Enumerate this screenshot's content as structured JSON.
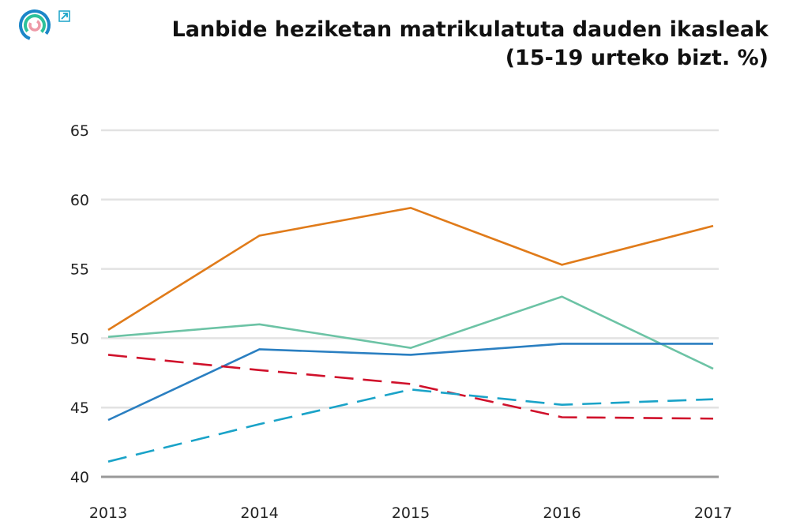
{
  "title_line1": "Lanbide heziketan matrikulatuta dauden ikasleak",
  "title_line2": "(15-19 urteko bizt. %)",
  "icons": {
    "logo": "circular-logo-icon",
    "external": "external-link-icon"
  },
  "chart_data": {
    "type": "line",
    "title": "Lanbide heziketan matrikulatuta dauden ikasleak (15-19 urteko bizt. %)",
    "categories": [
      "2013",
      "2014",
      "2015",
      "2016",
      "2017"
    ],
    "yticks": [
      "40",
      "45",
      "50",
      "55",
      "60",
      "65"
    ],
    "ylim": [
      40,
      65
    ],
    "grid": true,
    "legend": "none",
    "series": [
      {
        "color": "#e07b1a",
        "dash": false,
        "values": [
          50.6,
          57.4,
          59.4,
          55.3,
          58.1
        ]
      },
      {
        "color": "#6cc3a5",
        "dash": false,
        "values": [
          50.1,
          51.0,
          49.3,
          53.0,
          47.8
        ]
      },
      {
        "color": "#2a7fc1",
        "dash": false,
        "values": [
          44.1,
          49.2,
          48.8,
          49.6,
          49.6
        ]
      },
      {
        "color": "#d0112b",
        "dash": true,
        "values": [
          48.8,
          47.7,
          46.7,
          44.3,
          44.2
        ]
      },
      {
        "color": "#1aa3c8",
        "dash": true,
        "values": [
          41.1,
          43.8,
          46.3,
          45.2,
          45.6
        ]
      }
    ]
  }
}
